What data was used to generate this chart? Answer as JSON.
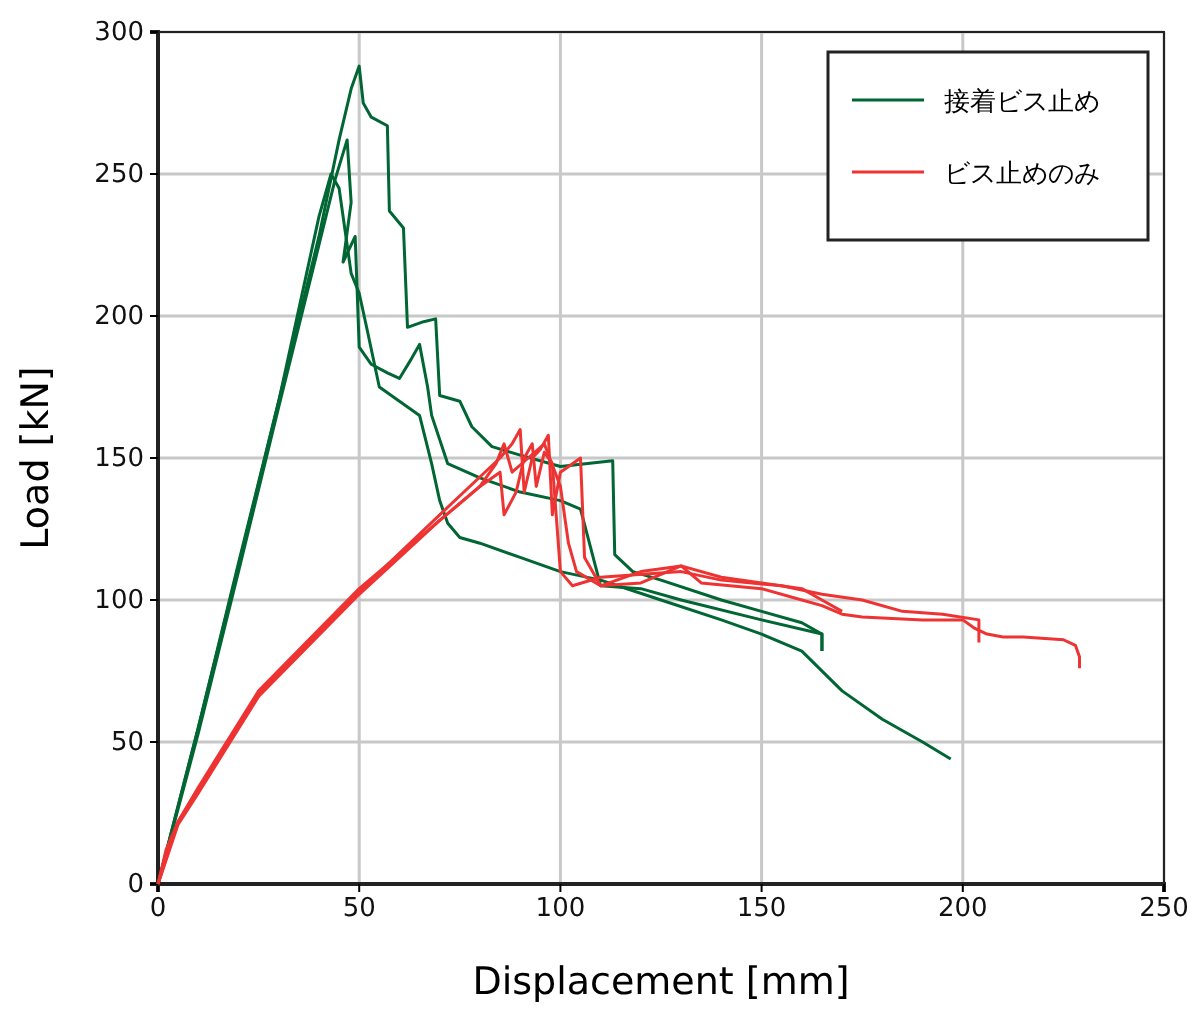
{
  "chart_data": {
    "type": "line",
    "xlabel": "Displacement [mm]",
    "ylabel": "Load [kN]",
    "xlim": [
      0,
      250
    ],
    "ylim": [
      0,
      300
    ],
    "xticks": [
      0,
      50,
      100,
      150,
      200,
      250
    ],
    "yticks": [
      0,
      50,
      100,
      150,
      200,
      250,
      300
    ],
    "grid": true,
    "legend": "top right",
    "line_style": "solid",
    "marker": "none",
    "series": [
      {
        "name": "接着ビス止め",
        "color": "#006633",
        "x": [
          0,
          10,
          20,
          30,
          40,
          45,
          48,
          50,
          51,
          53,
          57,
          57.5,
          61,
          62,
          66,
          69,
          70,
          75,
          78,
          83,
          90,
          100,
          113,
          113.5,
          118,
          125,
          140,
          150,
          160,
          165,
          165
        ],
        "values": [
          0,
          55,
          112,
          170,
          228,
          262,
          280,
          288,
          275,
          270,
          267,
          237,
          231,
          196,
          198,
          199,
          172,
          170,
          161,
          154,
          151,
          147,
          149,
          116,
          110,
          107,
          100,
          96,
          92,
          88,
          82
        ]
      },
      {
        "color": "#006633",
        "x": [
          0,
          10,
          20,
          30,
          40,
          44,
          47,
          48,
          46,
          49,
          50,
          52,
          53,
          57,
          60,
          63,
          65,
          67,
          68,
          72,
          80,
          90,
          100,
          105,
          110,
          120,
          130,
          150,
          165,
          165
        ],
        "values": [
          0,
          53,
          110,
          168,
          225,
          248,
          262,
          240,
          219,
          228,
          189,
          185,
          183,
          180,
          178,
          185,
          190,
          175,
          165,
          148,
          143,
          138,
          135,
          132,
          105,
          104,
          100,
          93,
          88,
          82
        ]
      },
      {
        "color": "#006633",
        "x": [
          0,
          10,
          20,
          30,
          40,
          43,
          45,
          47,
          48,
          50,
          52,
          55,
          60,
          65,
          68,
          70,
          72,
          75,
          80,
          90,
          100,
          110,
          125,
          140,
          150,
          160,
          170,
          180,
          190,
          197
        ],
        "values": [
          0,
          55,
          113,
          170,
          235,
          250,
          245,
          225,
          215,
          208,
          195,
          175,
          170,
          165,
          148,
          135,
          127,
          122,
          120,
          115,
          110,
          107,
          100,
          93,
          88,
          82,
          68,
          58,
          50,
          44
        ]
      },
      {
        "name": "ビス止めのみ",
        "color": "#ee3333",
        "x": [
          0,
          2,
          5,
          10,
          25,
          50,
          70,
          85,
          88,
          90,
          91,
          93,
          95,
          97,
          98,
          100,
          103,
          105,
          106,
          110,
          120,
          130,
          135,
          150,
          160,
          165,
          170,
          175,
          190,
          200,
          203,
          206,
          210,
          215,
          225,
          228,
          229,
          229
        ],
        "values": [
          0,
          12,
          22,
          33,
          67,
          103,
          130,
          150,
          155,
          160,
          138,
          150,
          153,
          158,
          130,
          145,
          148,
          150,
          115,
          105,
          110,
          112,
          106,
          104,
          100,
          98,
          95,
          94,
          93,
          93,
          90,
          88,
          87,
          87,
          86,
          84,
          80,
          76
        ]
      },
      {
        "color": "#ee3333",
        "x": [
          0,
          5,
          10,
          25,
          50,
          70,
          80,
          85,
          86,
          89,
          91,
          93,
          94,
          96,
          98,
          100,
          103,
          110,
          130,
          140,
          155,
          165,
          175,
          185,
          195,
          204,
          204
        ],
        "values": [
          0,
          21,
          32,
          66,
          102,
          128,
          140,
          145,
          130,
          138,
          150,
          155,
          140,
          152,
          148,
          110,
          105,
          108,
          110,
          107,
          105,
          102,
          100,
          96,
          95,
          93,
          85
        ]
      },
      {
        "color": "#ee3333",
        "x": [
          0,
          5,
          10,
          25,
          50,
          70,
          80,
          84,
          86,
          88,
          92,
          96,
          100,
          102,
          104,
          110,
          120,
          130,
          140,
          150,
          160,
          165,
          170
        ],
        "values": [
          0,
          22,
          34,
          68,
          104,
          128,
          140,
          148,
          155,
          145,
          150,
          155,
          140,
          120,
          110,
          105,
          106,
          112,
          108,
          106,
          104,
          100,
          96
        ]
      }
    ]
  }
}
